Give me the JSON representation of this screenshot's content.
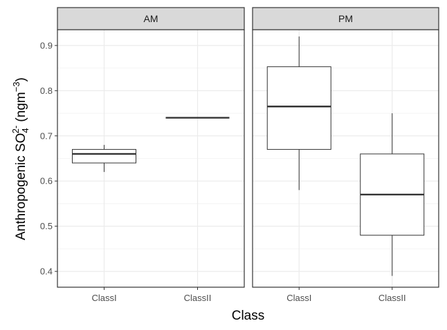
{
  "chart_data": {
    "type": "box",
    "xlabel": "Class",
    "ylabel": {
      "prefix": "Anthropogenic SO",
      "sub": "4",
      "sup": "2-",
      "unit_prefix": " (ngm",
      "unit_sup": "−3",
      "unit_suffix": ")"
    },
    "ylim": [
      0.365,
      0.935
    ],
    "yticks": [
      0.4,
      0.5,
      0.6,
      0.7,
      0.8,
      0.9
    ],
    "ytick_labels": [
      "0.4",
      "0.5",
      "0.6",
      "0.7",
      "0.8",
      "0.9"
    ],
    "grid": true,
    "categories": [
      "ClassI",
      "ClassII"
    ],
    "facets": [
      {
        "label": "AM",
        "boxes": [
          {
            "category": "ClassI",
            "min": 0.62,
            "q1": 0.64,
            "median": 0.66,
            "q3": 0.67,
            "max": 0.68
          },
          {
            "category": "ClassII",
            "min": 0.74,
            "q1": 0.74,
            "median": 0.74,
            "q3": 0.74,
            "max": 0.74
          }
        ]
      },
      {
        "label": "PM",
        "boxes": [
          {
            "category": "ClassI",
            "min": 0.58,
            "q1": 0.67,
            "median": 0.765,
            "q3": 0.853,
            "max": 0.92
          },
          {
            "category": "ClassII",
            "min": 0.39,
            "q1": 0.48,
            "median": 0.57,
            "q3": 0.66,
            "max": 0.75
          }
        ]
      }
    ]
  },
  "colors": {
    "panel_border": "#333333",
    "grid": "#ebebeb",
    "strip_fill": "#d9d9d9",
    "box_line": "#333333",
    "box_fill": "#ffffff"
  }
}
